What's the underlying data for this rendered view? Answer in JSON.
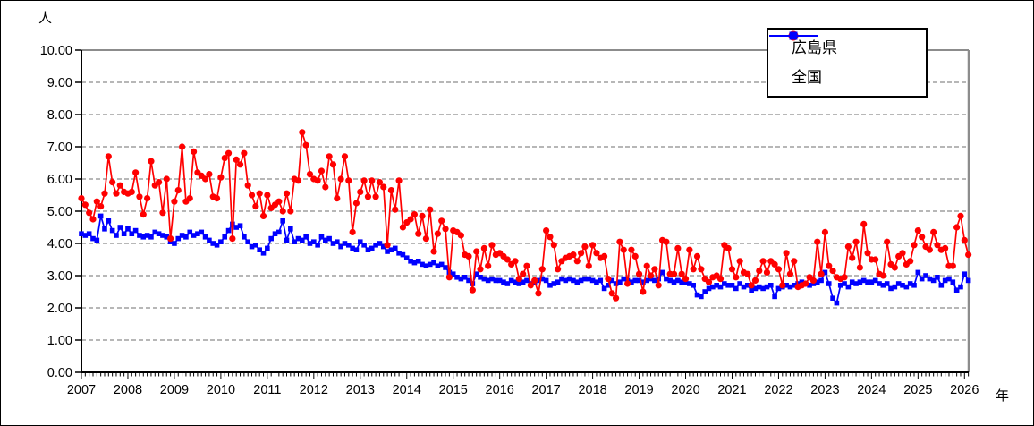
{
  "figure": {
    "y_axis_title": "人",
    "x_axis_title": "年",
    "legend": [
      {
        "label": "広島県",
        "color": "#ff0000",
        "marker": "circle"
      },
      {
        "label": "全国",
        "color": "#0000ff",
        "marker": "square"
      }
    ]
  },
  "chart_data": {
    "type": "line",
    "title": "",
    "xlabel": "年",
    "ylabel": "人",
    "ylim": [
      0,
      10
    ],
    "grid": "horizontal-dashed",
    "legend_position": "top-right",
    "x_start": "2007-01",
    "x_frequency": "monthly",
    "x_tick_years": [
      "2007",
      "2008",
      "2009",
      "2010",
      "2011",
      "2012",
      "2013",
      "2014",
      "2015",
      "2016",
      "2017",
      "2018",
      "2019",
      "2020",
      "2021",
      "2022",
      "2023",
      "2024",
      "2025",
      "2026"
    ],
    "y_tick_labels": [
      "0.00",
      "1.00",
      "2.00",
      "3.00",
      "4.00",
      "5.00",
      "6.00",
      "7.00",
      "8.00",
      "9.00",
      "10.00"
    ],
    "series": [
      {
        "name": "広島県",
        "color": "#ff0000",
        "marker": "circle",
        "values": [
          5.4,
          5.2,
          4.95,
          4.75,
          5.3,
          5.15,
          5.55,
          6.7,
          5.9,
          5.55,
          5.8,
          5.6,
          5.55,
          5.6,
          6.2,
          5.45,
          4.9,
          5.4,
          6.55,
          5.8,
          5.9,
          4.95,
          6.0,
          4.15,
          5.3,
          5.65,
          7.0,
          5.3,
          5.4,
          6.85,
          6.2,
          6.1,
          6.0,
          6.15,
          5.45,
          5.4,
          6.05,
          6.65,
          6.8,
          4.15,
          6.6,
          6.45,
          6.8,
          5.8,
          5.5,
          5.15,
          5.55,
          4.85,
          5.5,
          5.1,
          5.2,
          5.3,
          5.0,
          5.55,
          5.0,
          6.0,
          5.95,
          7.45,
          7.05,
          6.15,
          6.0,
          5.95,
          6.25,
          5.75,
          6.7,
          6.45,
          5.4,
          6.0,
          6.7,
          5.95,
          4.35,
          5.25,
          5.6,
          5.95,
          5.45,
          5.95,
          5.45,
          5.9,
          5.75,
          3.95,
          5.65,
          5.05,
          5.95,
          4.5,
          4.65,
          4.75,
          4.9,
          4.3,
          4.85,
          4.15,
          5.05,
          3.75,
          4.3,
          4.7,
          4.45,
          2.95,
          4.4,
          4.35,
          4.25,
          3.65,
          3.6,
          2.55,
          3.75,
          3.2,
          3.85,
          3.3,
          3.95,
          3.65,
          3.7,
          3.6,
          3.5,
          3.35,
          3.45,
          2.9,
          3.05,
          3.3,
          2.7,
          2.85,
          2.45,
          3.2,
          4.4,
          4.2,
          3.95,
          3.2,
          3.45,
          3.55,
          3.6,
          3.65,
          3.45,
          3.7,
          3.9,
          3.3,
          3.95,
          3.7,
          3.55,
          3.6,
          2.9,
          2.45,
          2.3,
          4.05,
          3.8,
          2.75,
          3.8,
          3.6,
          3.05,
          2.5,
          3.3,
          3.0,
          3.2,
          2.7,
          4.1,
          4.05,
          3.05,
          3.05,
          3.85,
          3.05,
          2.9,
          3.8,
          3.2,
          3.6,
          3.2,
          2.9,
          2.8,
          2.95,
          3.0,
          2.9,
          3.95,
          3.85,
          3.2,
          2.95,
          3.45,
          3.1,
          3.05,
          2.7,
          2.85,
          3.15,
          3.45,
          3.1,
          3.45,
          3.35,
          3.2,
          2.7,
          3.7,
          3.05,
          3.45,
          2.65,
          2.7,
          2.75,
          2.95,
          2.85,
          4.05,
          3.05,
          4.35,
          3.3,
          3.15,
          2.95,
          2.9,
          2.95,
          3.9,
          3.55,
          4.05,
          3.25,
          4.6,
          3.7,
          3.5,
          3.5,
          3.05,
          3.0,
          4.05,
          3.35,
          3.25,
          3.6,
          3.7,
          3.35,
          3.45,
          3.95,
          4.4,
          4.2,
          3.9,
          3.8,
          4.35,
          3.95,
          3.8,
          3.85,
          3.3,
          3.3,
          4.5,
          4.85,
          4.1,
          3.65
        ]
      },
      {
        "name": "全国",
        "color": "#0000ff",
        "marker": "square",
        "values": [
          4.3,
          4.25,
          4.3,
          4.15,
          4.1,
          4.85,
          4.45,
          4.7,
          4.4,
          4.25,
          4.5,
          4.3,
          4.45,
          4.3,
          4.4,
          4.25,
          4.2,
          4.25,
          4.2,
          4.35,
          4.3,
          4.25,
          4.2,
          4.05,
          4.0,
          4.15,
          4.25,
          4.2,
          4.35,
          4.25,
          4.3,
          4.35,
          4.2,
          4.1,
          4.0,
          3.95,
          4.05,
          4.2,
          4.4,
          4.6,
          4.5,
          4.55,
          4.2,
          4.05,
          3.9,
          3.95,
          3.8,
          3.7,
          3.85,
          4.15,
          4.3,
          4.35,
          4.7,
          4.1,
          4.45,
          4.05,
          4.15,
          4.1,
          4.2,
          4.0,
          4.05,
          3.95,
          4.2,
          4.1,
          4.15,
          4.0,
          4.05,
          3.9,
          4.0,
          3.95,
          3.85,
          3.8,
          4.05,
          3.95,
          3.8,
          3.85,
          3.95,
          4.0,
          3.9,
          3.75,
          3.8,
          3.85,
          3.7,
          3.65,
          3.55,
          3.45,
          3.4,
          3.45,
          3.35,
          3.3,
          3.35,
          3.4,
          3.3,
          3.35,
          3.25,
          3.1,
          3.05,
          2.95,
          2.9,
          2.95,
          2.85,
          2.75,
          3.05,
          2.95,
          2.9,
          2.85,
          2.9,
          2.85,
          2.85,
          2.8,
          2.75,
          2.85,
          2.8,
          2.75,
          2.8,
          2.85,
          2.75,
          2.8,
          2.85,
          2.9,
          2.85,
          2.7,
          2.75,
          2.8,
          2.9,
          2.85,
          2.9,
          2.85,
          2.8,
          2.85,
          2.9,
          2.9,
          2.85,
          2.8,
          2.85,
          2.6,
          2.7,
          2.85,
          2.75,
          2.8,
          2.9,
          2.85,
          2.8,
          2.85,
          2.85,
          2.8,
          2.85,
          2.9,
          2.85,
          2.9,
          3.1,
          2.9,
          2.85,
          2.8,
          2.85,
          2.8,
          2.8,
          2.75,
          2.7,
          2.4,
          2.35,
          2.5,
          2.6,
          2.65,
          2.7,
          2.65,
          2.75,
          2.7,
          2.7,
          2.6,
          2.75,
          2.65,
          2.7,
          2.55,
          2.6,
          2.65,
          2.6,
          2.65,
          2.7,
          2.35,
          2.6,
          2.65,
          2.7,
          2.65,
          2.7,
          2.75,
          2.8,
          2.75,
          2.7,
          2.75,
          2.8,
          2.85,
          3.1,
          2.75,
          2.3,
          2.15,
          2.7,
          2.75,
          2.65,
          2.8,
          2.75,
          2.8,
          2.85,
          2.8,
          2.8,
          2.85,
          2.75,
          2.7,
          2.75,
          2.6,
          2.65,
          2.75,
          2.7,
          2.65,
          2.75,
          2.7,
          3.1,
          2.9,
          3.0,
          2.9,
          2.85,
          2.95,
          2.7,
          2.85,
          2.9,
          2.8,
          2.55,
          2.65,
          3.05,
          2.85
        ]
      }
    ]
  }
}
